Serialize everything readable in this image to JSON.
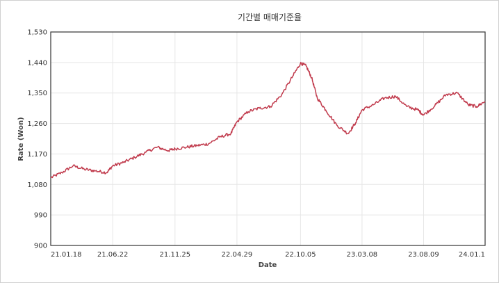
{
  "chart_data": {
    "type": "line",
    "title": "기간별 매매기준율",
    "xlabel": "Date",
    "ylabel": "Rate (Won)",
    "ylim": [
      900,
      1530
    ],
    "yticks": [
      "900",
      "990",
      "1,080",
      "1,170",
      "1,260",
      "1,350",
      "1,440",
      "1,530"
    ],
    "xticks": [
      "21.01.18",
      "21.06.22",
      "21.11.25",
      "22.04.29",
      "22.10.05",
      "23.03.08",
      "23.08.09",
      "24.01.1"
    ],
    "grid": true,
    "line_color": "#c0394b",
    "series": [
      {
        "x": [
          "21.01.18",
          "21.02.15",
          "21.03.15",
          "21.04.12",
          "21.05.10",
          "21.06.07",
          "21.06.22",
          "21.07.19",
          "21.08.16",
          "21.09.13",
          "21.10.11",
          "21.11.08",
          "21.11.25",
          "21.12.23",
          "22.01.20",
          "22.02.17",
          "22.03.17",
          "22.04.14",
          "22.04.29",
          "22.05.27",
          "22.06.24",
          "22.07.22",
          "22.08.19",
          "22.09.16",
          "22.10.05",
          "22.10.19",
          "22.11.02",
          "22.11.16",
          "22.12.07",
          "23.01.04",
          "23.02.01",
          "23.02.20",
          "23.03.08",
          "23.04.05",
          "23.05.03",
          "23.05.31",
          "23.06.28",
          "23.07.26",
          "23.08.09",
          "23.09.06",
          "23.10.04",
          "23.11.01",
          "23.11.29",
          "23.12.20",
          "24.01.10"
        ],
        "y": [
          1100,
          1115,
          1135,
          1125,
          1120,
          1115,
          1135,
          1145,
          1160,
          1175,
          1190,
          1180,
          1185,
          1190,
          1195,
          1200,
          1220,
          1230,
          1265,
          1295,
          1305,
          1310,
          1345,
          1400,
          1438,
          1430,
          1395,
          1335,
          1300,
          1255,
          1230,
          1262,
          1300,
          1315,
          1335,
          1340,
          1310,
          1300,
          1285,
          1312,
          1345,
          1350,
          1315,
          1310,
          1325
        ]
      }
    ]
  }
}
